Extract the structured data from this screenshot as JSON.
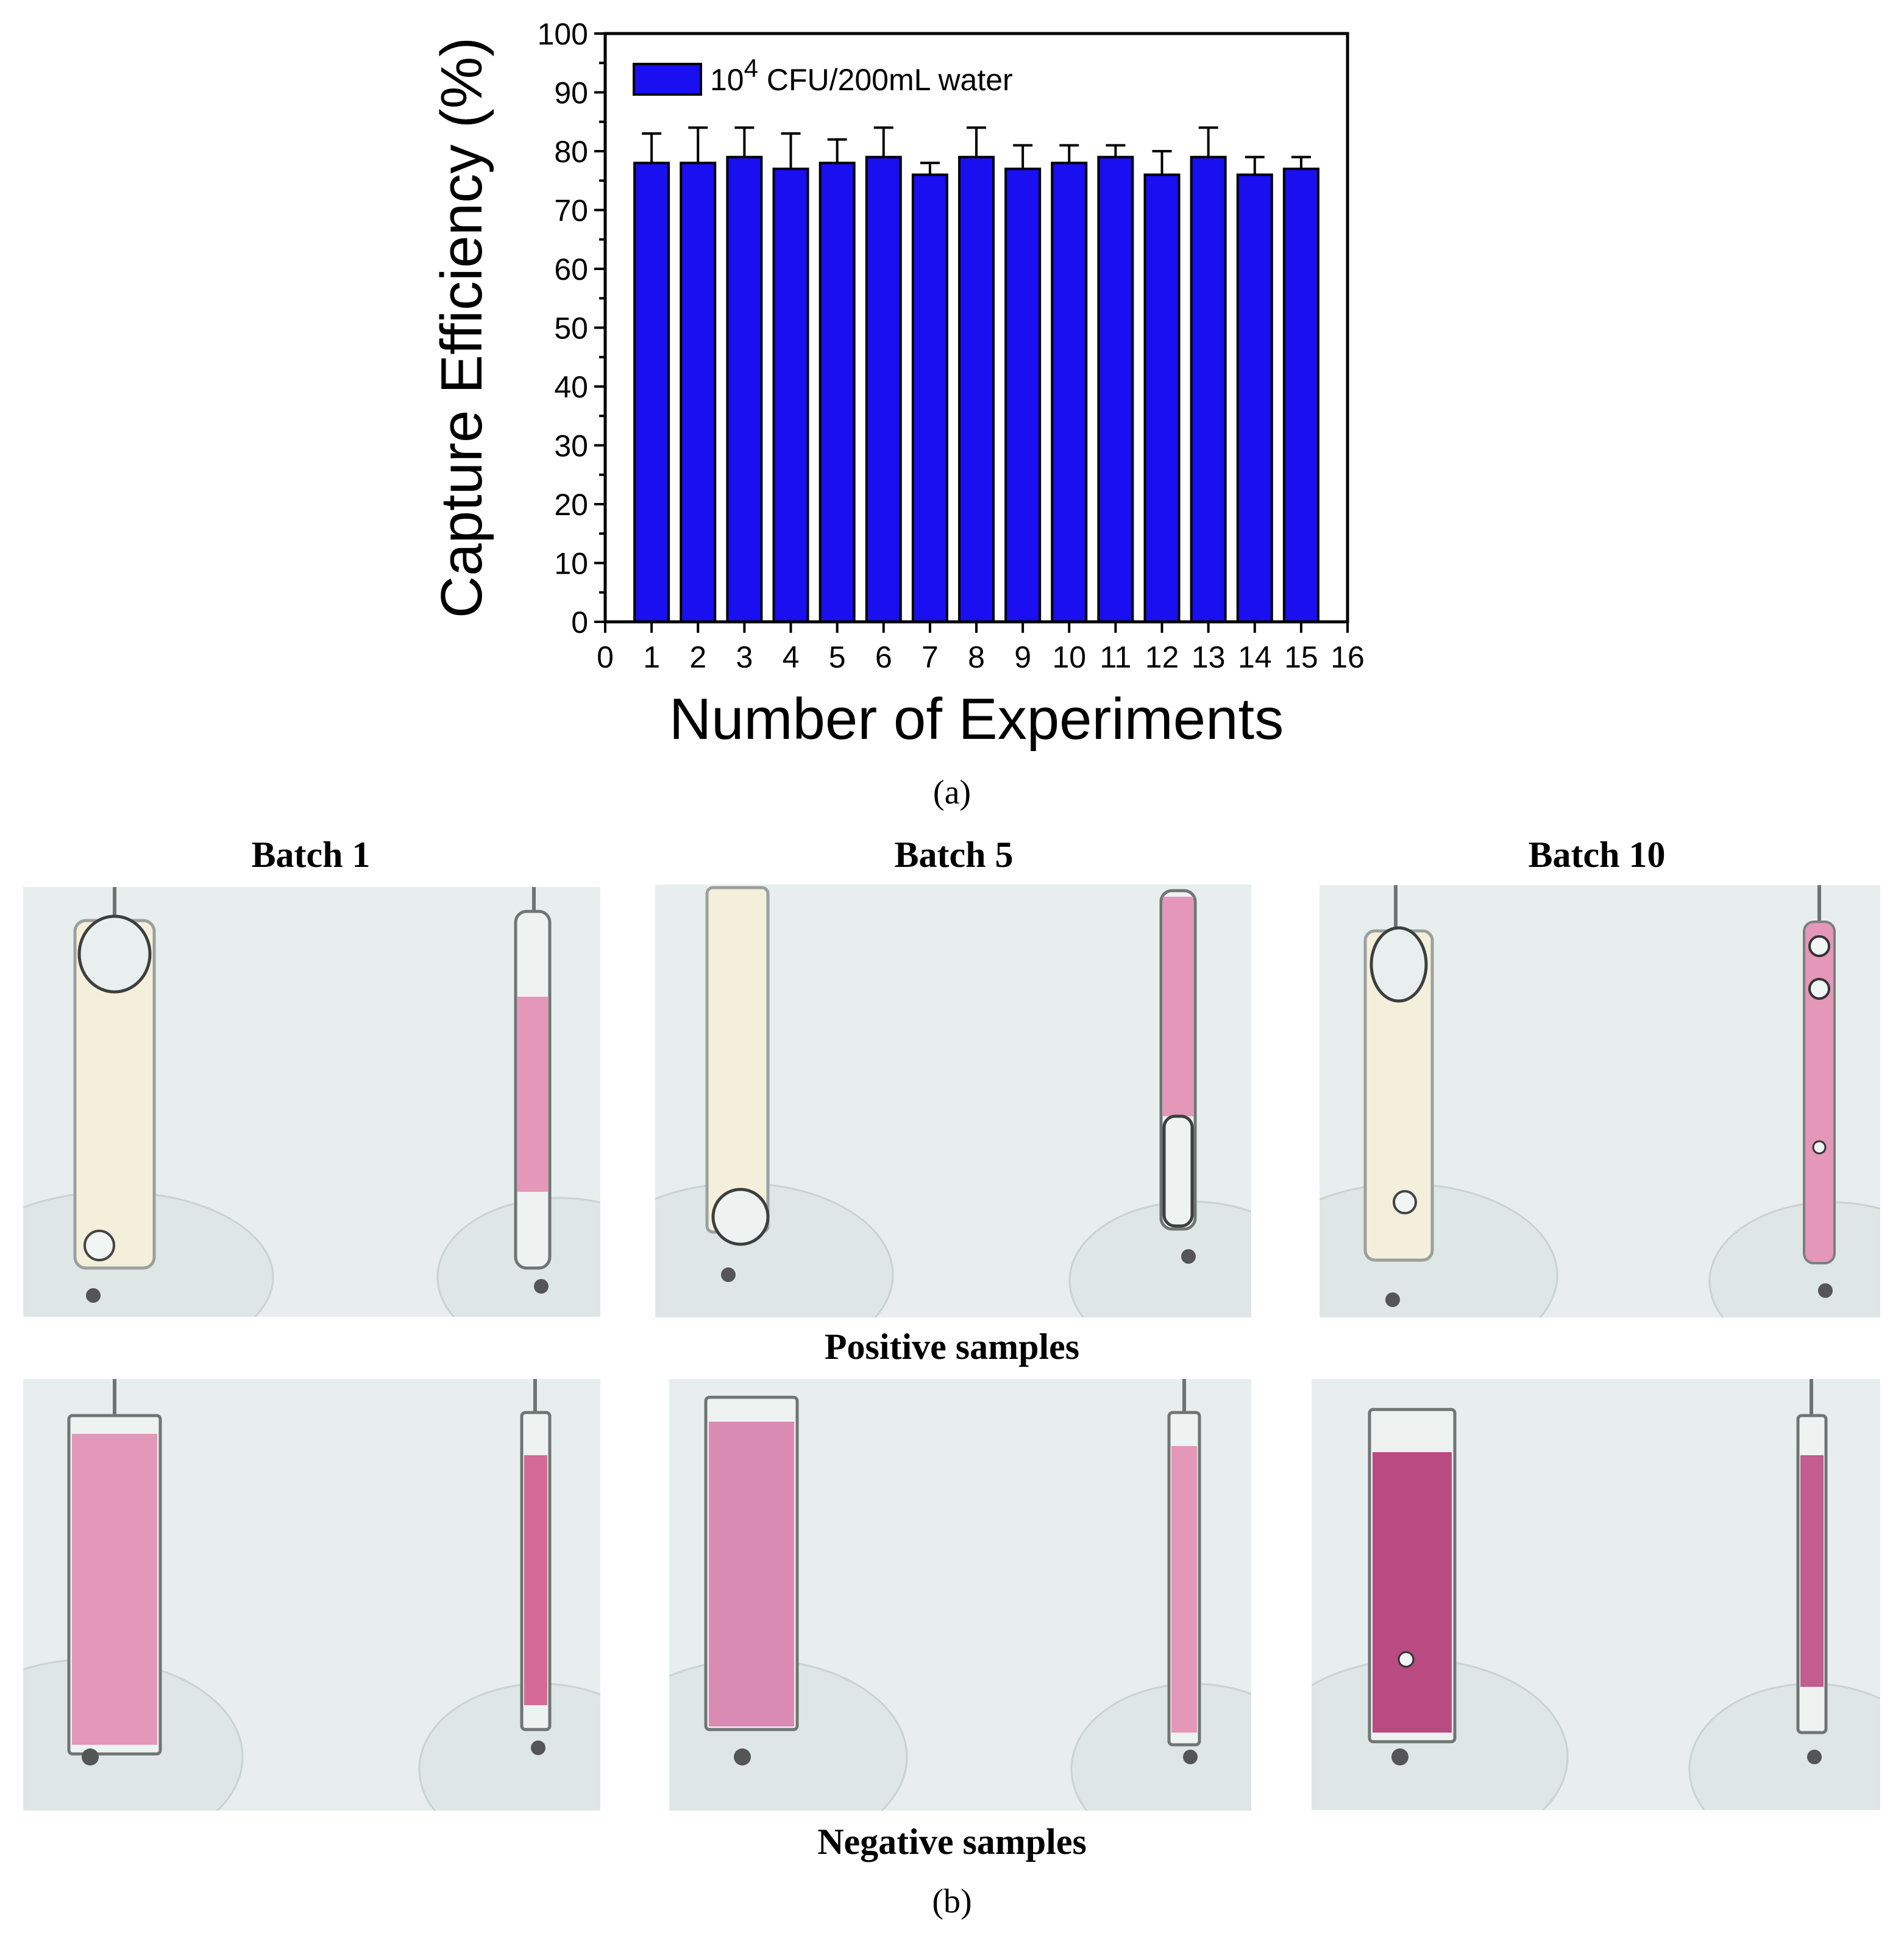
{
  "chart_data": {
    "type": "bar",
    "categories": [
      "1",
      "2",
      "3",
      "4",
      "5",
      "6",
      "7",
      "8",
      "9",
      "10",
      "11",
      "12",
      "13",
      "14",
      "15"
    ],
    "values": [
      78,
      78,
      79,
      77,
      78,
      79,
      76,
      79,
      77,
      78,
      79,
      76,
      79,
      76,
      77
    ],
    "error": [
      5,
      6,
      5,
      6,
      4,
      5,
      2,
      5,
      4,
      3,
      2,
      4,
      5,
      3,
      2
    ],
    "series": [
      {
        "name": "10",
        "superscript": "4",
        "suffix": " CFU/200mL water"
      }
    ],
    "xlabel": "Number of Experiments",
    "ylabel": "Capture Efficiency (%)",
    "xlim": [
      0,
      16
    ],
    "ylim": [
      0,
      100
    ],
    "xticks": [
      "0",
      "1",
      "2",
      "3",
      "4",
      "5",
      "6",
      "7",
      "8",
      "9",
      "10",
      "11",
      "12",
      "13",
      "14",
      "15",
      "16"
    ],
    "yticks": [
      "0",
      "10",
      "20",
      "30",
      "40",
      "50",
      "60",
      "70",
      "80",
      "90",
      "100"
    ],
    "legend_position": "top-left",
    "bar_color": "#1a0ff0"
  },
  "labels": {
    "panel_a": "(a)",
    "panel_b": "(b)",
    "batches": [
      "Batch 1",
      "Batch 5",
      "Batch 10"
    ],
    "positive": "Positive samples",
    "negative": "Negative samples"
  },
  "colors": {
    "photo_bg": "#e7eeed",
    "pink": "#e497b8",
    "magenta": "#b94a82",
    "pale_yellow": "#f4efdb"
  }
}
